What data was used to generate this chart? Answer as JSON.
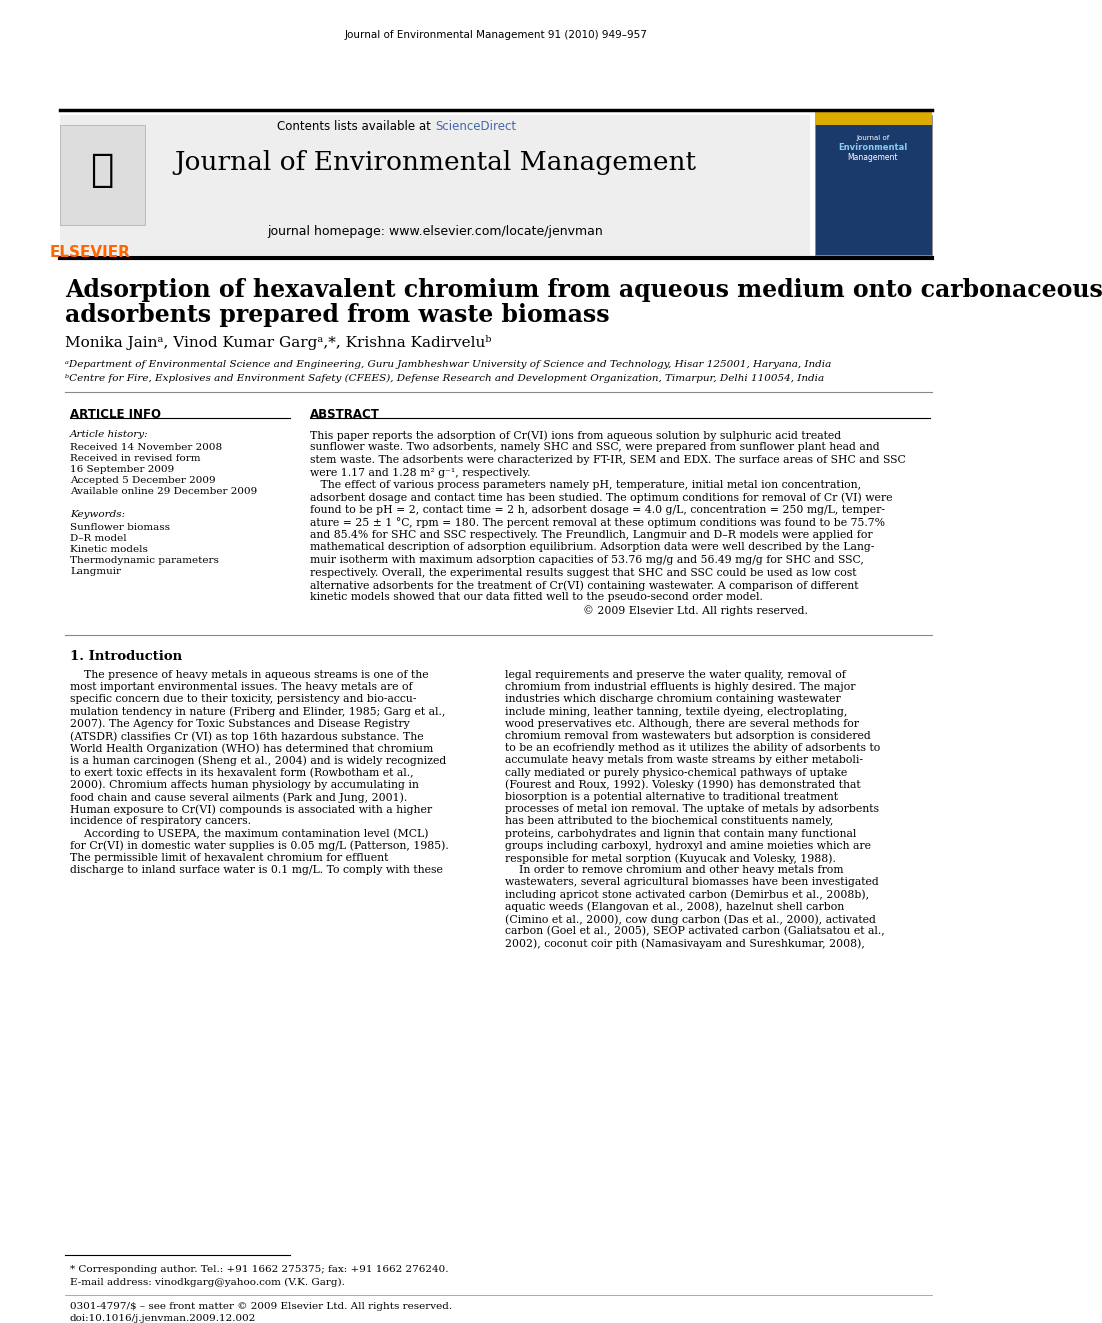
{
  "journal_header_text": "Journal of Environmental Management 91 (2010) 949–957",
  "contents_text": "Contents lists available at",
  "sciencedirect_text": "ScienceDirect",
  "journal_name": "Journal of Environmental Management",
  "journal_homepage": "journal homepage: www.elsevier.com/locate/jenvman",
  "elsevier_text": "ELSEVIER",
  "paper_title_line1": "Adsorption of hexavalent chromium from aqueous medium onto carbonaceous",
  "paper_title_line2": "adsorbents prepared from waste biomass",
  "authors": "Monika Jainᵃ, Vinod Kumar Gargᵃ,*, Krishna Kadirveluᵇ",
  "affil_a": "ᵃDepartment of Environmental Science and Engineering, Guru Jambheshwar University of Science and Technology, Hisar 125001, Haryana, India",
  "affil_b": "ᵇCentre for Fire, Explosives and Environment Safety (CFEES), Defense Research and Development Organization, Timarpur, Delhi 110054, India",
  "article_info_header": "ARTICLE INFO",
  "abstract_header": "ABSTRACT",
  "article_history_label": "Article history:",
  "received_1": "Received 14 November 2008",
  "received_revised": "Received in revised form",
  "received_revised_date": "16 September 2009",
  "accepted": "Accepted 5 December 2009",
  "available": "Available online 29 December 2009",
  "keywords_label": "Keywords:",
  "keyword_1": "Sunflower biomass",
  "keyword_2": "D–R model",
  "keyword_3": "Kinetic models",
  "keyword_4": "Thermodynamic parameters",
  "keyword_5": "Langmuir",
  "abstract_text": "This paper reports the adsorption of Cr(VI) ions from aqueous solution by sulphuric acid treated sunflower waste. Two adsorbents, namely SHC and SSC, were prepared from sunflower plant head and stem waste. The adsorbents were characterized by FT-IR, SEM and EDX. The surface areas of SHC and SSC were 1.17 and 1.28 m² g⁻¹, respectively.\n    The effect of various process parameters namely pH, temperature, initial metal ion concentration, adsorbent dosage and contact time has been studied. The optimum conditions for removal of Cr (VI) were found to be pH = 2, contact time = 2 h, adsorbent dosage = 4.0 g/L, concentration = 250 mg/L, temperature = 25 ± 1 °C, rpm = 180. The percent removal at these optimum conditions was found to be 75.7% and 85.4% for SHC and SSC respectively. The Freundlich, Langmuir and D–R models were applied for mathematical description of adsorption equilibrium. Adsorption data were well described by the Langmuir isotherm with maximum adsorption capacities of 53.76 mg/g and 56.49 mg/g for SHC and SSC, respectively. Overall, the experimental results suggest that SHC and SSC could be used as low cost alternative adsorbents for the treatment of Cr(VI) containing wastewater. A comparison of different kinetic models showed that our data fitted well to the pseudo-second order model.\n© 2009 Elsevier Ltd. All rights reserved.",
  "intro_header": "1. Introduction",
  "intro_text_col1": "The presence of heavy metals in aqueous streams is one of the most important environmental issues. The heavy metals are of specific concern due to their toxicity, persistency and bio-accumulation tendency in nature (Friberg and Elinder, 1985; Garg et al., 2007). The Agency for Toxic Substances and Disease Registry (ATSDR) classifies Cr (VI) as top 16th hazardous substance. The World Health Organization (WHO) has determined that chromium is a human carcinogen (Sheng et al., 2004) and is widely recognized to exert toxic effects in its hexavalent form (Rowbotham et al., 2000). Chromium affects human physiology by accumulating in food chain and cause several ailments (Park and Jung, 2001). Human exposure to Cr(VI) compounds is associated with a higher incidence of respiratory cancers.\n    According to USEPA, the maximum contamination level (MCL) for Cr(VI) in domestic water supplies is 0.05 mg/L (Patterson, 1985). The permissible limit of hexavalent chromium for effluent discharge to inland surface water is 0.1 mg/L. To comply with these",
  "intro_text_col2": "legal requirements and preserve the water quality, removal of chromium from industrial effluents is highly desired. The major industries which discharge chromium containing wastewater include mining, leather tanning, textile dyeing, electroplating, wood preservatives etc. Although, there are several methods for chromium removal from wastewaters but adsorption is considered to be an ecofriendly method as it utilizes the ability of adsorbents to accumulate heavy metals from waste streams by either metabolically mediated or purely physico-chemical pathways of uptake (Fourest and Roux, 1992). Volesky (1990) has demonstrated that biosorption is a potential alternative to traditional treatment processes of metal ion removal. The uptake of metals by adsorbents has been attributed to the biochemical constituents namely, proteins, carbohydrates and lignin that contain many functional groups including carboxyl, hydroxyl and amine moieties which are responsible for metal sorption (Kuyucak and Volesky, 1988).\n    In order to remove chromium and other heavy metals from wastewaters, several agricultural biomasses have been investigated including apricot stone activated carbon (Demirbus et al., 2008b), aquatic weeds (Elangovan et al., 2008), hazelnut shell carbon (Cimino et al., 2000), cow dung carbon (Das et al., 2000), activated carbon (Goel et al., 2005), SEOP activated carbon (Galiatsatou et al., 2002), coconut coir pith (Namasivayam and Sureshkumar, 2008),",
  "footnote_corresponding": "* Corresponding author. Tel.: +91 1662 275375; fax: +91 1662 276240.",
  "footnote_email": "E-mail address: vinodkgarg@yahoo.com (V.K. Garg).",
  "footer_issn": "0301-4797/$ – see front matter © 2009 Elsevier Ltd. All rights reserved.",
  "footer_doi": "doi:10.1016/j.jenvman.2009.12.002",
  "bg_color": "#ffffff",
  "header_bg": "#f0f0f0",
  "black": "#000000",
  "orange": "#FF6600",
  "blue_scidir": "#4466aa",
  "dark_blue": "#003366",
  "thick_line_color": "#000000",
  "thin_line_color": "#888888"
}
